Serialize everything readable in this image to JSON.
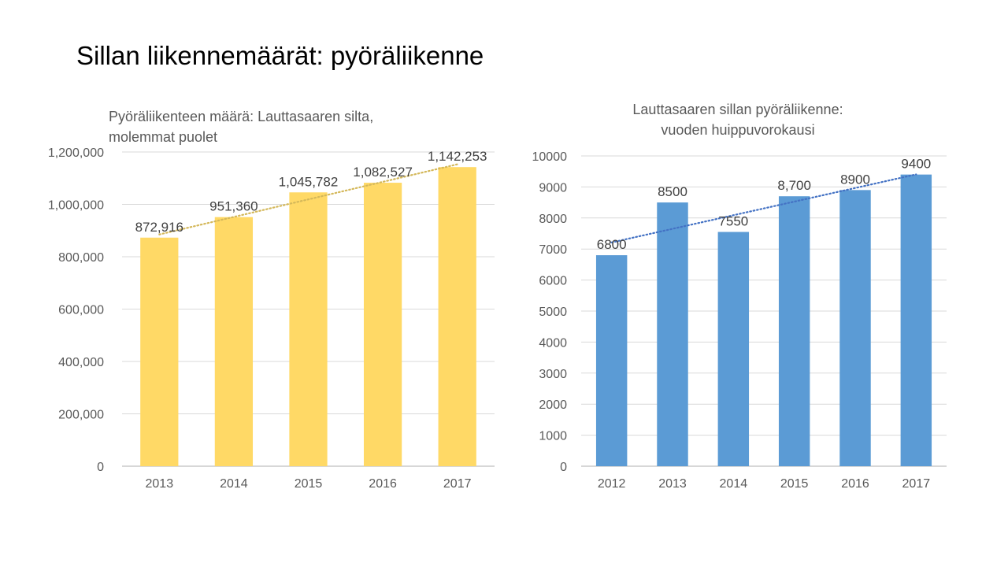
{
  "slide": {
    "title": "Sillan liikennemäärät: pyöräliikenne"
  },
  "chart_data": [
    {
      "type": "bar",
      "title_lines": [
        "Pyöräliikenteen määrä: Lauttasaaren silta,",
        "molemmat puolet"
      ],
      "categories": [
        "2013",
        "2014",
        "2015",
        "2016",
        "2017"
      ],
      "values": [
        872916,
        951360,
        1045782,
        1082527,
        1142253
      ],
      "value_labels": [
        "872,916",
        "951,360",
        "1,045,782",
        "1,082,527",
        "1,142,253"
      ],
      "ylim": [
        0,
        1200000
      ],
      "ytick_values": [
        0,
        200000,
        400000,
        600000,
        800000,
        1000000,
        1200000
      ],
      "yticks": [
        "0",
        "200,000",
        "400,000",
        "600,000",
        "800,000",
        "1,000,000",
        "1,200,000"
      ],
      "trendline": "linear, dotted",
      "bar_color": "#FFD966",
      "trend_color": "#D4B85A",
      "xlabel": "",
      "ylabel": ""
    },
    {
      "type": "bar",
      "title_lines": [
        "Lauttasaaren sillan pyöräliikenne:",
        "vuoden huippuvorokausi"
      ],
      "categories": [
        "2012",
        "2013",
        "2014",
        "2015",
        "2016",
        "2017"
      ],
      "values": [
        6800,
        8500,
        7550,
        8700,
        8900,
        9400
      ],
      "value_labels": [
        "6800",
        "8500",
        "7550",
        "8,700",
        "8900",
        "9400"
      ],
      "ylim": [
        0,
        10000
      ],
      "ytick_values": [
        0,
        1000,
        2000,
        3000,
        4000,
        5000,
        6000,
        7000,
        8000,
        9000,
        10000
      ],
      "yticks": [
        "0",
        "1000",
        "2000",
        "3000",
        "4000",
        "5000",
        "6000",
        "7000",
        "8000",
        "9000",
        "10000"
      ],
      "trendline": "linear, dotted",
      "bar_color": "#5B9BD5",
      "trend_color": "#4472C4",
      "xlabel": "",
      "ylabel": ""
    }
  ]
}
